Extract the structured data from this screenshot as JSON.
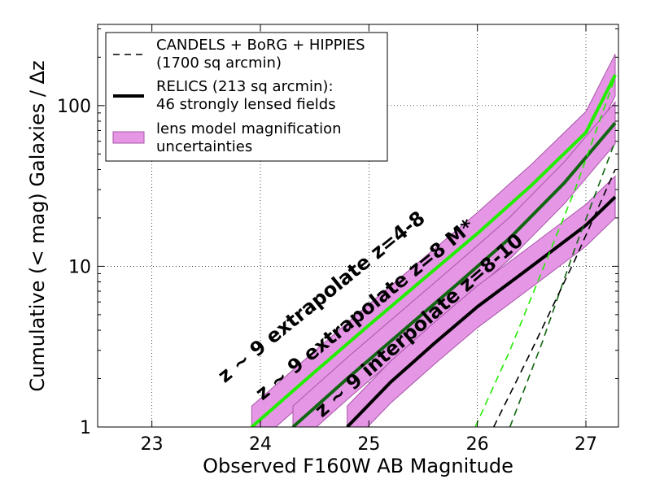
{
  "chart_data": {
    "type": "line",
    "xlabel": "Observed F160W AB Magnitude",
    "ylabel": "Cumulative (< mag) Galaxies / Δz",
    "xlim": [
      22.5,
      27.3
    ],
    "ylim": [
      1,
      320
    ],
    "yscale": "log",
    "grid": true,
    "grid_style": "dotted",
    "legend_position": "top-left",
    "x_ticks": [
      23,
      24,
      25,
      26,
      27
    ],
    "x_tick_labels": [
      "23",
      "24",
      "25",
      "26",
      "27"
    ],
    "y_ticks": [
      1,
      10,
      100
    ],
    "y_tick_labels": [
      "1",
      "10",
      "100"
    ],
    "legend": [
      {
        "label_lines": [
          "CANDELS + BoRG + HIPPIES",
          "(1700 sq arcmin)"
        ],
        "style": "dashed",
        "color": "#000000"
      },
      {
        "label_lines": [
          "RELICS (213 sq arcmin):",
          "46 strongly lensed fields"
        ],
        "style": "solid-thick",
        "color": "#000000"
      },
      {
        "label_lines": [
          "lens model magnification",
          "uncertainties"
        ],
        "style": "band",
        "color": "#e596e5"
      }
    ],
    "series": [
      {
        "name": "z ~ 9  extrapolate z=4-8",
        "kind": "relics",
        "color": "#22ee00",
        "x": [
          23.92,
          24.5,
          25.0,
          25.5,
          26.0,
          26.5,
          27.0,
          27.27
        ],
        "y": [
          1.0,
          2.2,
          4.3,
          8.3,
          16,
          32,
          68,
          155
        ],
        "band_factor": 1.35
      },
      {
        "name": "z ~ 9  extrapolate z=8 M*",
        "kind": "relics",
        "color": "#116611",
        "x": [
          24.3,
          24.8,
          25.3,
          25.8,
          26.3,
          26.8,
          27.27
        ],
        "y": [
          1.0,
          2.0,
          3.9,
          7.6,
          15,
          33,
          78
        ],
        "band_factor": 1.35
      },
      {
        "name": "z ~ 9  interpolate z=8-10",
        "kind": "relics",
        "color": "#000000",
        "x": [
          24.8,
          25.2,
          25.6,
          26.0,
          26.5,
          27.0,
          27.27
        ],
        "y": [
          1.0,
          1.9,
          3.3,
          5.6,
          10,
          18,
          27
        ],
        "band_factor": 1.35
      },
      {
        "name": "CANDELS extrapolate z=4-8",
        "kind": "candels",
        "color": "#22ee00",
        "x": [
          25.98,
          26.3,
          26.6,
          26.9,
          27.27
        ],
        "y": [
          1.0,
          3.0,
          9.5,
          30,
          150
        ]
      },
      {
        "name": "CANDELS extrapolate z=8 M*",
        "kind": "candels",
        "color": "#116611",
        "x": [
          26.3,
          26.6,
          26.9,
          27.27
        ],
        "y": [
          1.0,
          3.4,
          13,
          60
        ]
      },
      {
        "name": "CANDELS interpolate z=8-10",
        "kind": "candels",
        "color": "#000000",
        "x": [
          26.15,
          26.5,
          26.9,
          27.27
        ],
        "y": [
          1.0,
          3.0,
          11,
          40
        ]
      }
    ],
    "annotations": [
      {
        "text": "z ~ 9  extrapolate z=4-8",
        "x": 24.6,
        "y": 6.0,
        "angle": -39,
        "size": 24
      },
      {
        "text": "z ~ 9  extrapolate z=8 M*",
        "x": 25.0,
        "y": 5.0,
        "angle": -39,
        "size": 24
      },
      {
        "text": "z ~ 9  interpolate z=8-10",
        "x": 25.5,
        "y": 4.0,
        "angle": -41,
        "size": 24
      }
    ]
  }
}
